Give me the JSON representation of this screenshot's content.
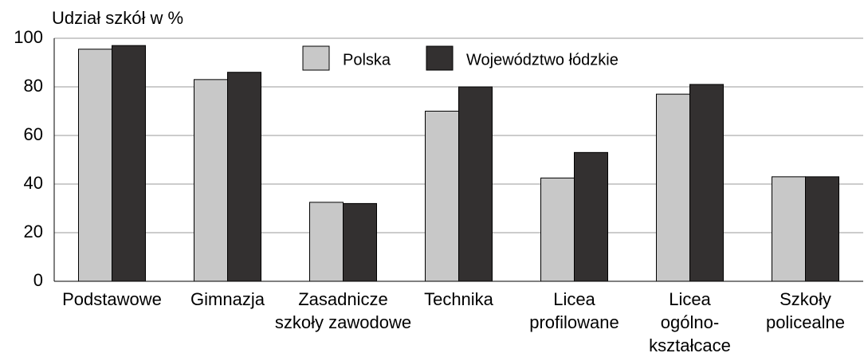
{
  "chart_data": {
    "type": "bar",
    "y_label": "Udział szkół w %",
    "categories": [
      [
        "Podstawowe"
      ],
      [
        "Gimnazja"
      ],
      [
        "Zasadnicze",
        "szkoły zawodowe"
      ],
      [
        "Technika"
      ],
      [
        "Licea",
        "profilowane"
      ],
      [
        "Licea",
        "ogólno-",
        "kształcace"
      ],
      [
        "Szkoły",
        "policealne"
      ]
    ],
    "series": [
      {
        "name": "Polska",
        "color": "#c8c8c8",
        "values": [
          95.5,
          83,
          32.5,
          70,
          42.5,
          77,
          43
        ]
      },
      {
        "name": "Województwo łódzkie",
        "color": "#333030",
        "values": [
          97,
          86,
          32,
          80,
          53,
          81,
          43
        ]
      }
    ],
    "ylim": [
      0,
      100
    ],
    "yticks": [
      0,
      20,
      40,
      60,
      80,
      100
    ],
    "grid": true,
    "legend": "top"
  }
}
